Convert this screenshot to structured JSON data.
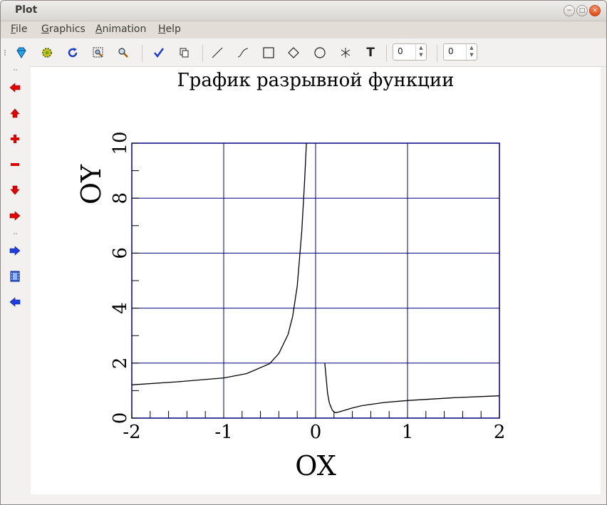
{
  "window": {
    "title": "Plot",
    "buttons": {
      "minimize": "−",
      "maximize": "□",
      "close": "×"
    }
  },
  "menu": [
    {
      "label": "File",
      "u": "F",
      "rest": "ile"
    },
    {
      "label": "Graphics",
      "u": "G",
      "rest": "raphics"
    },
    {
      "label": "Animation",
      "u": "A",
      "rest": "nimation"
    },
    {
      "label": "Help",
      "u": "H",
      "rest": "elp"
    }
  ],
  "toolbar": {
    "tools": [
      "gem-icon",
      "gear-icon",
      "refresh-icon",
      "zoom-region-icon",
      "zoom-search-icon",
      "checkmark-icon",
      "copy-icon",
      "line-tool-icon",
      "curve-tool-icon",
      "rectangle-tool-icon",
      "diamond-tool-icon",
      "ellipse-tool-icon",
      "asterisk-tool-icon",
      "text-tool-icon"
    ],
    "text_tool_label": "T",
    "spin1": "0",
    "spin2": "0"
  },
  "sidebar": [
    "arrow-left-red-icon",
    "arrow-up-red-icon",
    "plus-icon",
    "minus-icon",
    "arrow-down-red-icon",
    "arrow-right-red-icon",
    "arrow-right-blue-icon",
    "film-icon",
    "arrow-left-blue-icon"
  ],
  "colors": {
    "grid": "#000080",
    "curve": "#000000",
    "red_icon": "#e00000",
    "blue_icon": "#1f3ee0"
  },
  "chart_data": {
    "type": "line",
    "title": "График разрывной функции",
    "xlabel": "OX",
    "ylabel": "OY",
    "xlim": [
      -2,
      2
    ],
    "ylim": [
      0,
      10
    ],
    "xticks": [
      "-2",
      "-1",
      "0",
      "1",
      "2"
    ],
    "yticks": [
      "0",
      "2",
      "4",
      "6",
      "8",
      "10"
    ],
    "grid": true,
    "series": [
      {
        "x": [
          -2,
          -1.5,
          -1,
          -0.75,
          -0.5,
          -0.4,
          -0.3,
          -0.25,
          -0.2,
          -0.15,
          -0.12,
          -0.1
        ],
        "y": [
          1.21,
          1.32,
          1.46,
          1.62,
          1.98,
          2.35,
          3.04,
          3.7,
          4.8,
          6.8,
          8.6,
          10
        ]
      },
      {
        "x": [
          0.1,
          0.13,
          0.15,
          0.18,
          0.2,
          0.22,
          0.25,
          0.3,
          0.4,
          0.5,
          0.75,
          1,
          1.5,
          2
        ],
        "y": [
          2.0,
          0.9,
          0.55,
          0.3,
          0.22,
          0.2,
          0.22,
          0.27,
          0.37,
          0.45,
          0.57,
          0.64,
          0.74,
          0.81
        ]
      }
    ]
  }
}
